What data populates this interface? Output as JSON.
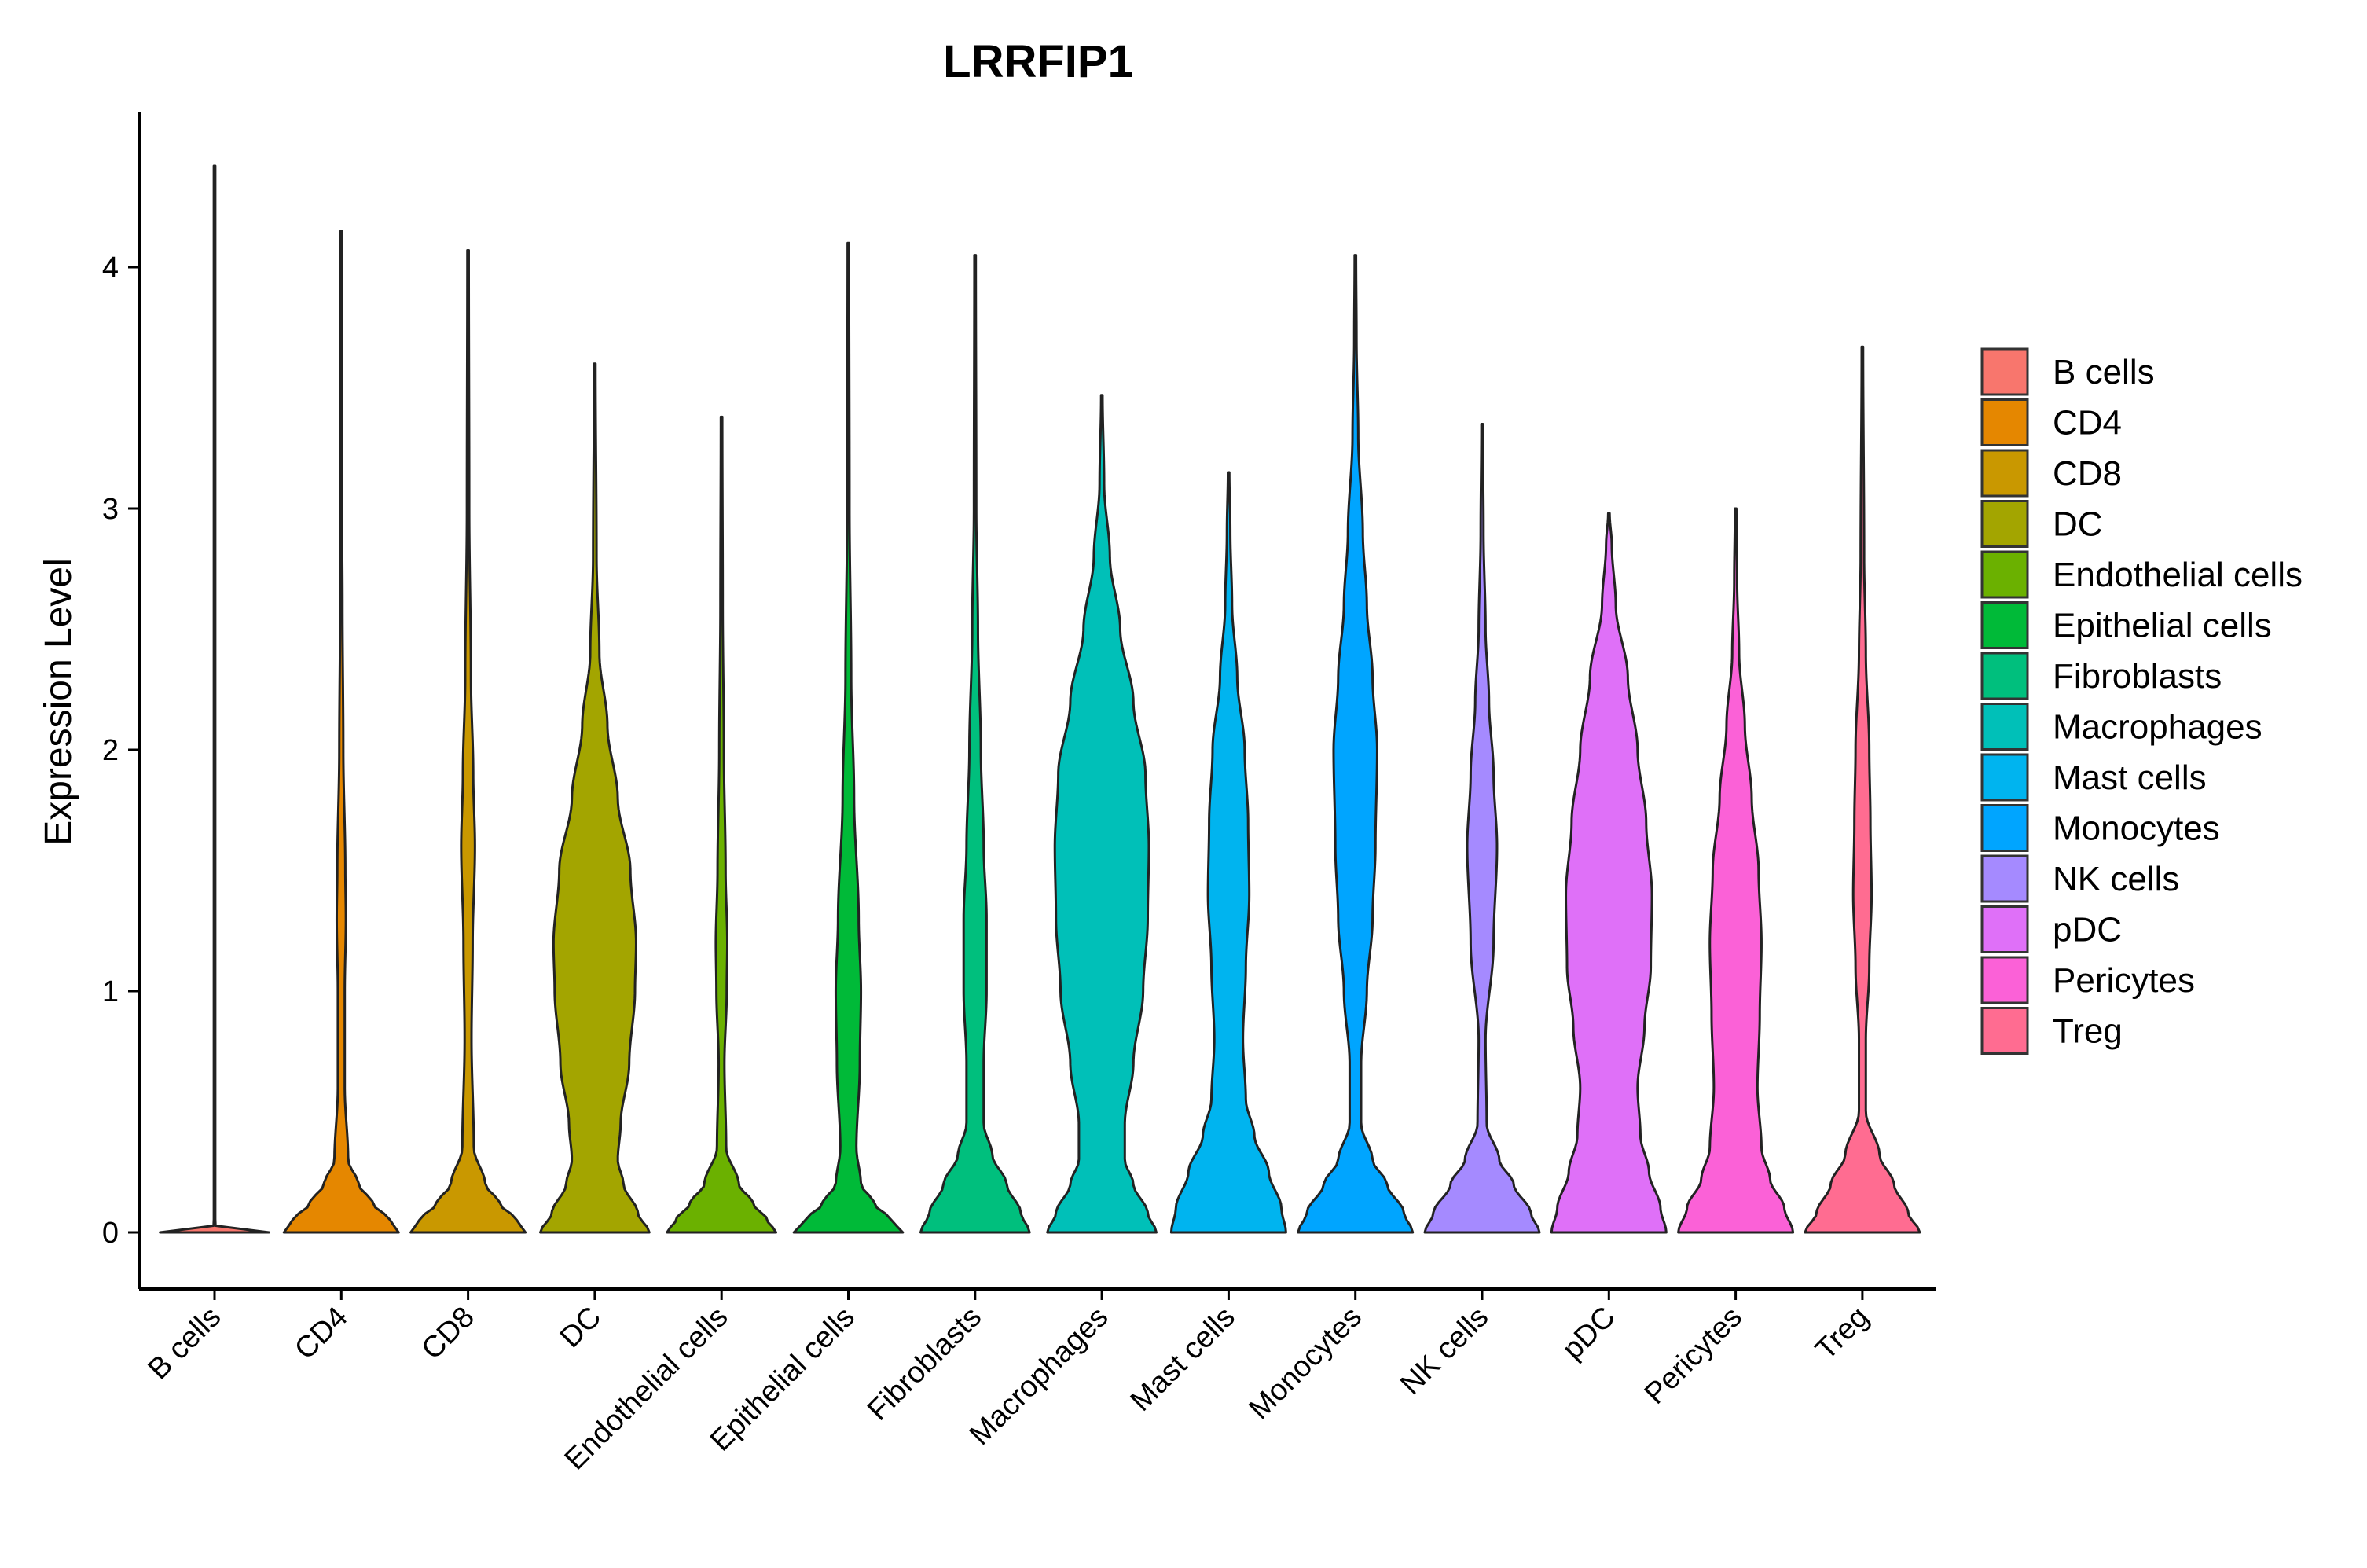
{
  "chart_data": {
    "type": "violin",
    "title": "LRRFIP1",
    "ylabel": "Expression Level",
    "xlabel": "",
    "ylim": [
      -0.22,
      4.65
    ],
    "yticks": [
      0,
      1,
      2,
      3,
      4
    ],
    "grid": false,
    "legend_position": "right",
    "groups": [
      {
        "name": "B cells",
        "color": "#F8766D",
        "max": 4.42,
        "profile": [
          [
            0,
            0.95
          ],
          [
            0.003,
            0.1
          ],
          [
            0.01,
            0.02
          ],
          [
            0.05,
            0.012
          ],
          [
            4.42,
            0.012
          ]
        ]
      },
      {
        "name": "CD4",
        "color": "#E58700",
        "max": 4.15,
        "profile": [
          [
            0,
            1.0
          ],
          [
            0.05,
            0.85
          ],
          [
            0.12,
            0.55
          ],
          [
            0.2,
            0.3
          ],
          [
            0.3,
            0.12
          ],
          [
            0.6,
            0.06
          ],
          [
            1.0,
            0.06
          ],
          [
            1.3,
            0.08
          ],
          [
            1.5,
            0.07
          ],
          [
            2.0,
            0.035
          ],
          [
            2.6,
            0.02
          ],
          [
            3.0,
            0.012
          ],
          [
            4.15,
            0.012
          ]
        ]
      },
      {
        "name": "CD8",
        "color": "#C99800",
        "max": 4.07,
        "profile": [
          [
            0,
            1.0
          ],
          [
            0.05,
            0.85
          ],
          [
            0.12,
            0.55
          ],
          [
            0.2,
            0.3
          ],
          [
            0.35,
            0.1
          ],
          [
            0.8,
            0.06
          ],
          [
            1.2,
            0.08
          ],
          [
            1.6,
            0.12
          ],
          [
            1.9,
            0.09
          ],
          [
            2.3,
            0.05
          ],
          [
            3.0,
            0.02
          ],
          [
            4.07,
            0.012
          ]
        ]
      },
      {
        "name": "DC",
        "color": "#A3A500",
        "max": 3.6,
        "profile": [
          [
            0,
            0.95
          ],
          [
            0.08,
            0.75
          ],
          [
            0.2,
            0.5
          ],
          [
            0.3,
            0.4
          ],
          [
            0.45,
            0.45
          ],
          [
            0.7,
            0.6
          ],
          [
            1.0,
            0.7
          ],
          [
            1.2,
            0.72
          ],
          [
            1.5,
            0.62
          ],
          [
            1.8,
            0.4
          ],
          [
            2.1,
            0.22
          ],
          [
            2.4,
            0.08
          ],
          [
            2.8,
            0.03
          ],
          [
            3.6,
            0.012
          ]
        ]
      },
      {
        "name": "Endothelial cells",
        "color": "#6BB100",
        "max": 3.38,
        "profile": [
          [
            0,
            0.95
          ],
          [
            0.05,
            0.8
          ],
          [
            0.12,
            0.55
          ],
          [
            0.2,
            0.3
          ],
          [
            0.35,
            0.08
          ],
          [
            0.7,
            0.05
          ],
          [
            1.0,
            0.09
          ],
          [
            1.2,
            0.1
          ],
          [
            1.5,
            0.07
          ],
          [
            2.0,
            0.04
          ],
          [
            2.6,
            0.02
          ],
          [
            3.38,
            0.012
          ]
        ]
      },
      {
        "name": "Epithelial cells",
        "color": "#00BA38",
        "max": 4.1,
        "profile": [
          [
            0,
            0.95
          ],
          [
            0.05,
            0.75
          ],
          [
            0.12,
            0.45
          ],
          [
            0.2,
            0.22
          ],
          [
            0.35,
            0.14
          ],
          [
            0.7,
            0.2
          ],
          [
            1.0,
            0.22
          ],
          [
            1.3,
            0.18
          ],
          [
            1.8,
            0.1
          ],
          [
            2.3,
            0.05
          ],
          [
            3.0,
            0.02
          ],
          [
            4.1,
            0.012
          ]
        ]
      },
      {
        "name": "Fibroblasts",
        "color": "#00BF7D",
        "max": 4.05,
        "profile": [
          [
            0,
            0.95
          ],
          [
            0.08,
            0.8
          ],
          [
            0.2,
            0.55
          ],
          [
            0.32,
            0.3
          ],
          [
            0.45,
            0.15
          ],
          [
            0.7,
            0.15
          ],
          [
            1.0,
            0.2
          ],
          [
            1.3,
            0.2
          ],
          [
            1.6,
            0.15
          ],
          [
            2.0,
            0.1
          ],
          [
            2.5,
            0.05
          ],
          [
            3.0,
            0.02
          ],
          [
            4.05,
            0.012
          ]
        ]
      },
      {
        "name": "Macrophages",
        "color": "#00C0B8",
        "max": 3.47,
        "profile": [
          [
            0,
            0.95
          ],
          [
            0.08,
            0.8
          ],
          [
            0.2,
            0.55
          ],
          [
            0.3,
            0.4
          ],
          [
            0.45,
            0.4
          ],
          [
            0.7,
            0.55
          ],
          [
            1.0,
            0.72
          ],
          [
            1.3,
            0.8
          ],
          [
            1.6,
            0.82
          ],
          [
            1.9,
            0.76
          ],
          [
            2.2,
            0.55
          ],
          [
            2.5,
            0.32
          ],
          [
            2.8,
            0.14
          ],
          [
            3.1,
            0.04
          ],
          [
            3.47,
            0.012
          ]
        ]
      },
      {
        "name": "Mast cells",
        "color": "#00B4EF",
        "max": 3.15,
        "profile": [
          [
            0,
            1.0
          ],
          [
            0.1,
            0.92
          ],
          [
            0.25,
            0.7
          ],
          [
            0.4,
            0.45
          ],
          [
            0.55,
            0.3
          ],
          [
            0.8,
            0.25
          ],
          [
            1.1,
            0.3
          ],
          [
            1.4,
            0.36
          ],
          [
            1.7,
            0.34
          ],
          [
            2.0,
            0.28
          ],
          [
            2.3,
            0.15
          ],
          [
            2.6,
            0.06
          ],
          [
            2.9,
            0.03
          ],
          [
            3.15,
            0.012
          ]
        ]
      },
      {
        "name": "Monocytes",
        "color": "#00A5FF",
        "max": 4.05,
        "profile": [
          [
            0,
            1.0
          ],
          [
            0.08,
            0.85
          ],
          [
            0.2,
            0.55
          ],
          [
            0.3,
            0.3
          ],
          [
            0.45,
            0.1
          ],
          [
            0.7,
            0.1
          ],
          [
            1.0,
            0.2
          ],
          [
            1.3,
            0.3
          ],
          [
            1.6,
            0.35
          ],
          [
            2.0,
            0.38
          ],
          [
            2.3,
            0.3
          ],
          [
            2.6,
            0.2
          ],
          [
            2.9,
            0.13
          ],
          [
            3.3,
            0.05
          ],
          [
            3.7,
            0.02
          ],
          [
            4.05,
            0.012
          ]
        ]
      },
      {
        "name": "NK cells",
        "color": "#A58AFF",
        "max": 3.35,
        "profile": [
          [
            0,
            1.0
          ],
          [
            0.08,
            0.85
          ],
          [
            0.2,
            0.55
          ],
          [
            0.3,
            0.3
          ],
          [
            0.45,
            0.08
          ],
          [
            0.8,
            0.06
          ],
          [
            1.2,
            0.2
          ],
          [
            1.6,
            0.26
          ],
          [
            1.9,
            0.2
          ],
          [
            2.2,
            0.12
          ],
          [
            2.5,
            0.06
          ],
          [
            2.9,
            0.025
          ],
          [
            3.35,
            0.012
          ]
        ]
      },
      {
        "name": "pDC",
        "color": "#DF70F8",
        "max": 2.98,
        "profile": [
          [
            0,
            1.0
          ],
          [
            0.1,
            0.9
          ],
          [
            0.25,
            0.7
          ],
          [
            0.4,
            0.55
          ],
          [
            0.6,
            0.5
          ],
          [
            0.85,
            0.62
          ],
          [
            1.1,
            0.73
          ],
          [
            1.4,
            0.75
          ],
          [
            1.7,
            0.65
          ],
          [
            2.0,
            0.5
          ],
          [
            2.3,
            0.33
          ],
          [
            2.6,
            0.12
          ],
          [
            2.85,
            0.05
          ],
          [
            2.98,
            0.012
          ]
        ]
      },
      {
        "name": "Pericytes",
        "color": "#FB61D7",
        "max": 3.0,
        "profile": [
          [
            0,
            1.0
          ],
          [
            0.1,
            0.85
          ],
          [
            0.22,
            0.6
          ],
          [
            0.35,
            0.45
          ],
          [
            0.6,
            0.38
          ],
          [
            0.9,
            0.42
          ],
          [
            1.2,
            0.45
          ],
          [
            1.5,
            0.4
          ],
          [
            1.8,
            0.28
          ],
          [
            2.1,
            0.16
          ],
          [
            2.4,
            0.06
          ],
          [
            2.7,
            0.025
          ],
          [
            3.0,
            0.012
          ]
        ]
      },
      {
        "name": "Treg",
        "color": "#FF6C91",
        "max": 3.67,
        "profile": [
          [
            0,
            1.0
          ],
          [
            0.08,
            0.8
          ],
          [
            0.2,
            0.55
          ],
          [
            0.32,
            0.3
          ],
          [
            0.5,
            0.06
          ],
          [
            0.8,
            0.06
          ],
          [
            1.1,
            0.12
          ],
          [
            1.4,
            0.16
          ],
          [
            1.7,
            0.14
          ],
          [
            2.0,
            0.12
          ],
          [
            2.4,
            0.06
          ],
          [
            2.8,
            0.03
          ],
          [
            3.67,
            0.012
          ]
        ]
      }
    ]
  }
}
